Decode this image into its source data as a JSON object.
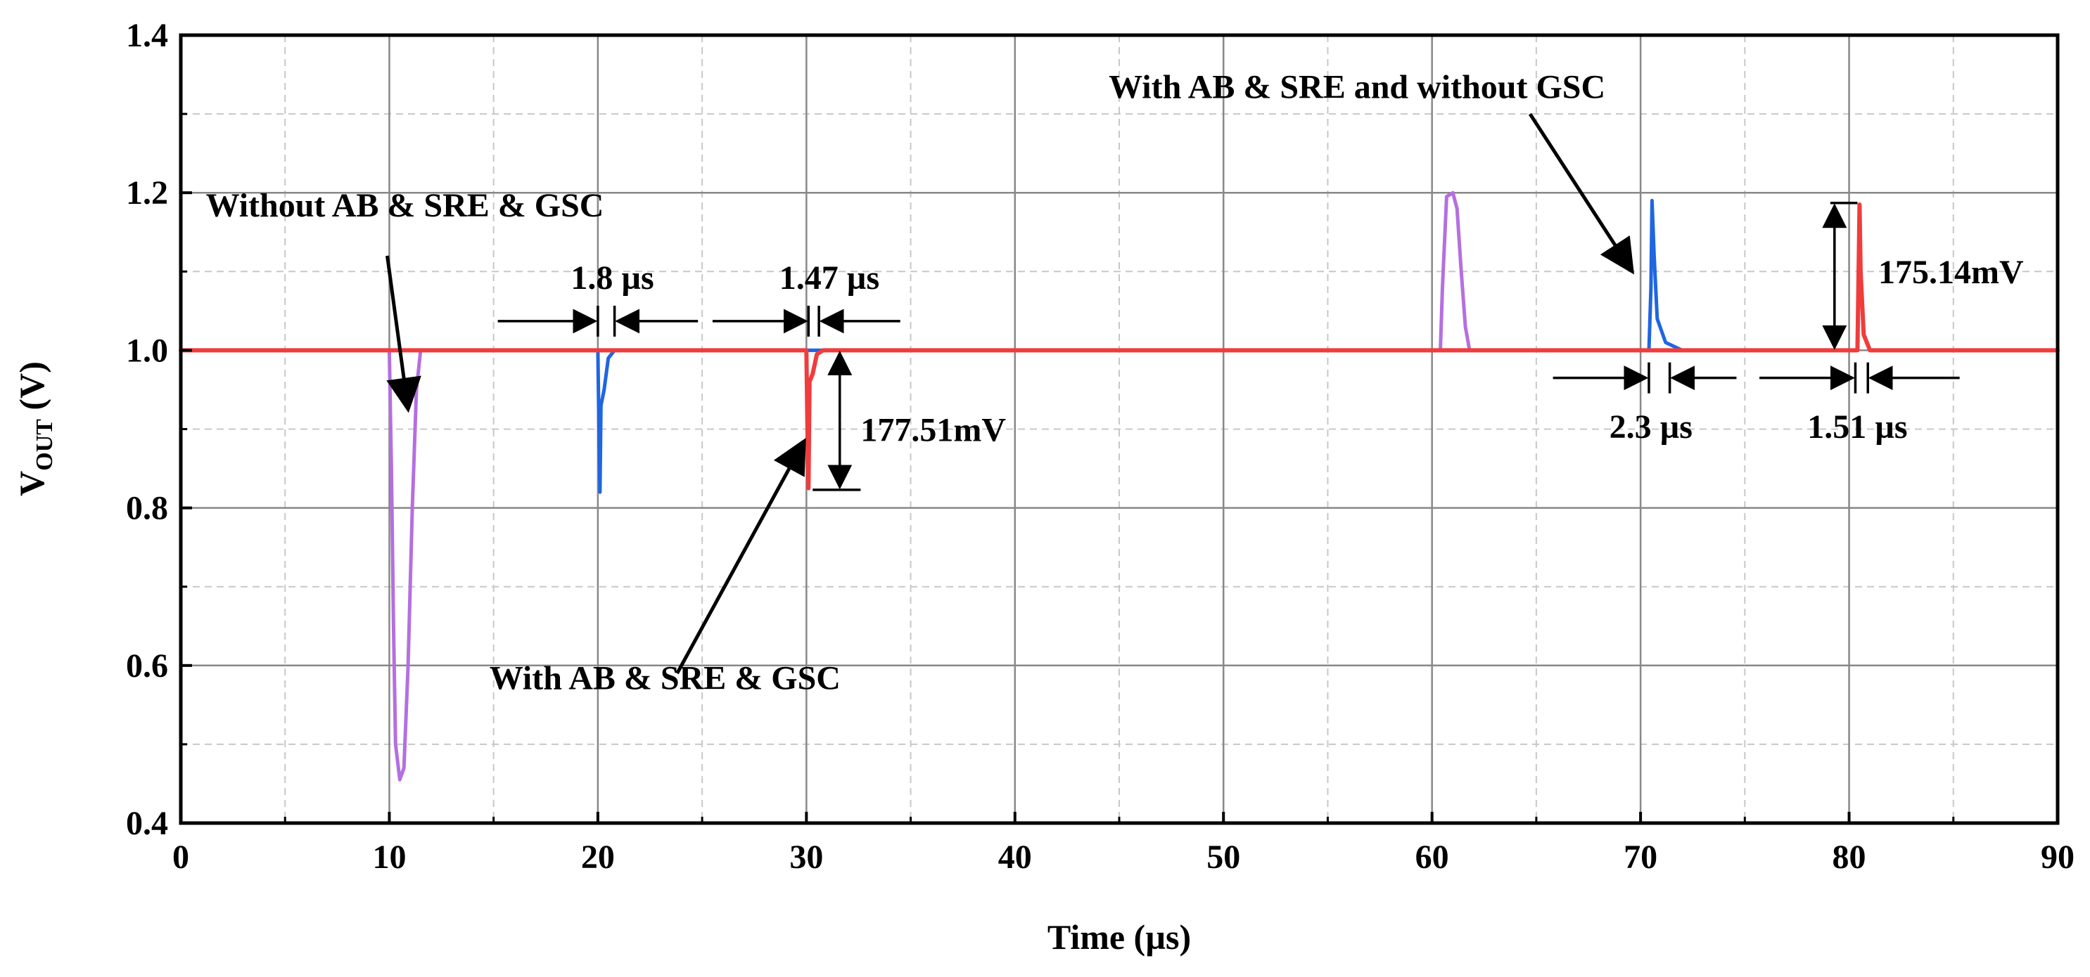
{
  "chart_data": {
    "type": "line",
    "xlabel": "Time (µs)",
    "ylabel_main": "V",
    "ylabel_sub": "OUT",
    "ylabel_unit": " (V)",
    "xlim": [
      0,
      90
    ],
    "ylim": [
      0.4,
      1.4
    ],
    "x_ticks": [
      0,
      10,
      20,
      30,
      40,
      50,
      60,
      70,
      80,
      90
    ],
    "x_tick_labels": [
      "0",
      "10",
      "20",
      "30",
      "40",
      "50",
      "60",
      "70",
      "80",
      "90"
    ],
    "y_ticks": [
      0.4,
      0.6,
      0.8,
      1.0,
      1.2,
      1.4
    ],
    "y_tick_labels": [
      "0.4",
      "0.6",
      "0.8",
      "1.0",
      "1.2",
      "1.4"
    ],
    "grid": true,
    "colors": {
      "purple": "#b56fe0",
      "blue": "#1f66e0",
      "red": "#f03c3c",
      "grid_major": "#888888",
      "grid_minor": "#c8c8c8"
    },
    "series": [
      {
        "name": "Without AB & SRE & GSC",
        "color": "#b56fe0",
        "points": [
          [
            10.0,
            1.0
          ],
          [
            10.1,
            0.85
          ],
          [
            10.2,
            0.65
          ],
          [
            10.3,
            0.5
          ],
          [
            10.5,
            0.455
          ],
          [
            10.7,
            0.47
          ],
          [
            10.9,
            0.6
          ],
          [
            11.1,
            0.8
          ],
          [
            11.3,
            0.95
          ],
          [
            11.5,
            1.0
          ],
          [
            12,
            1.0
          ],
          [
            60.4,
            1.0
          ],
          [
            60.5,
            1.08
          ],
          [
            60.7,
            1.195
          ],
          [
            61.0,
            1.2
          ],
          [
            61.2,
            1.18
          ],
          [
            61.4,
            1.1
          ],
          [
            61.6,
            1.03
          ],
          [
            61.8,
            1.0
          ]
        ]
      },
      {
        "name": "With AB & SRE and without GSC",
        "color": "#1f66e0",
        "points": [
          [
            20.0,
            1.0
          ],
          [
            20.05,
            0.9
          ],
          [
            20.1,
            0.82
          ],
          [
            20.15,
            0.93
          ],
          [
            20.3,
            0.95
          ],
          [
            20.5,
            0.99
          ],
          [
            20.8,
            1.0
          ],
          [
            70.4,
            1.0
          ],
          [
            70.5,
            1.08
          ],
          [
            70.55,
            1.19
          ],
          [
            70.65,
            1.12
          ],
          [
            70.8,
            1.04
          ],
          [
            71.2,
            1.01
          ],
          [
            72,
            1.0
          ],
          [
            74,
            1.0
          ]
        ]
      },
      {
        "name": "With AB & SRE & GSC",
        "color": "#f03c3c",
        "points": [
          [
            0,
            1.0
          ],
          [
            30.0,
            1.0
          ],
          [
            30.05,
            0.9
          ],
          [
            30.1,
            0.825
          ],
          [
            30.15,
            0.96
          ],
          [
            30.3,
            0.97
          ],
          [
            30.5,
            0.995
          ],
          [
            30.8,
            1.0
          ],
          [
            80.4,
            1.0
          ],
          [
            80.45,
            1.09
          ],
          [
            80.5,
            1.185
          ],
          [
            80.55,
            1.1
          ],
          [
            80.7,
            1.02
          ],
          [
            81,
            1.0
          ],
          [
            90,
            1.0
          ]
        ]
      }
    ],
    "annotations": [
      {
        "text": "Without AB & SRE & GSC",
        "x": 1.2,
        "y": 1.17
      },
      {
        "text": "1.8 µs",
        "x": 18.7,
        "y": 1.078
      },
      {
        "text": "1.47 µs",
        "x": 28.7,
        "y": 1.078
      },
      {
        "text": "177.51mV",
        "x": 32.6,
        "y": 0.885
      },
      {
        "text": "With AB & SRE & GSC",
        "x": 14.8,
        "y": 0.57
      },
      {
        "text": "With AB & SRE and without  GSC",
        "x": 44.5,
        "y": 1.32
      },
      {
        "text": "175.14mV",
        "x": 81.4,
        "y": 1.085
      },
      {
        "text": "2.3 µs",
        "x": 68.5,
        "y": 0.889
      },
      {
        "text": "1.51 µs",
        "x": 78.0,
        "y": 0.889
      }
    ],
    "arrows": [
      {
        "from": [
          9.9,
          1.12
        ],
        "to": [
          10.9,
          0.925
        ]
      },
      {
        "from": [
          23.8,
          0.59
        ],
        "to": [
          29.9,
          0.885
        ]
      },
      {
        "from": [
          64.7,
          1.3
        ],
        "to": [
          69.6,
          1.1
        ]
      }
    ],
    "dimension_markers": [
      {
        "kind": "h",
        "y": 1.037,
        "x1": 20.0,
        "x2": 20.8,
        "left_from": 15.2,
        "right_to": 24.8
      },
      {
        "kind": "h",
        "y": 1.037,
        "x1": 30.1,
        "x2": 30.6,
        "left_from": 25.5,
        "right_to": 34.5
      },
      {
        "kind": "h",
        "y": 0.965,
        "x1": 70.4,
        "x2": 71.4,
        "left_from": 65.8,
        "right_to": 74.6
      },
      {
        "kind": "h",
        "y": 0.965,
        "x1": 80.3,
        "x2": 80.9,
        "left_from": 75.7,
        "right_to": 85.3
      },
      {
        "kind": "v",
        "x": 31.6,
        "y1": 0.823,
        "y2": 1.0,
        "cap_to": 32.6,
        "cap_from": 30.3
      },
      {
        "kind": "v",
        "x": 79.3,
        "y1": 1.0,
        "y2": 1.187,
        "cap_to": 80.4,
        "cap_from": 79.1
      }
    ]
  }
}
